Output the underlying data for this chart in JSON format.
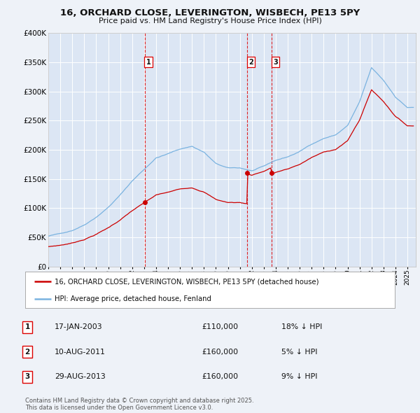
{
  "title": "16, ORCHARD CLOSE, LEVERINGTON, WISBECH, PE13 5PY",
  "subtitle": "Price paid vs. HM Land Registry's House Price Index (HPI)",
  "hpi_color": "#7ab3e0",
  "price_color": "#cc0000",
  "background_color": "#eef2f8",
  "plot_bg_color": "#dce6f4",
  "grid_color": "#ffffff",
  "ylim": [
    0,
    400000
  ],
  "yticks": [
    0,
    50000,
    100000,
    150000,
    200000,
    250000,
    300000,
    350000,
    400000
  ],
  "ytick_labels": [
    "£0",
    "£50K",
    "£100K",
    "£150K",
    "£200K",
    "£250K",
    "£300K",
    "£350K",
    "£400K"
  ],
  "sale_dates_num": [
    2003.046,
    2011.604,
    2013.66
  ],
  "sale_prices": [
    110000,
    160000,
    160000
  ],
  "sale_labels": [
    "1",
    "2",
    "3"
  ],
  "vline_color": "#dd0000",
  "footer_line1": "Contains HM Land Registry data © Crown copyright and database right 2025.",
  "footer_line2": "This data is licensed under the Open Government Licence v3.0.",
  "legend_entry1": "16, ORCHARD CLOSE, LEVERINGTON, WISBECH, PE13 5PY (detached house)",
  "legend_entry2": "HPI: Average price, detached house, Fenland",
  "table_data": [
    {
      "label": "1",
      "date": "17-JAN-2003",
      "price": "£110,000",
      "hpi": "18% ↓ HPI"
    },
    {
      "label": "2",
      "date": "10-AUG-2011",
      "price": "£160,000",
      "hpi": "5% ↓ HPI"
    },
    {
      "label": "3",
      "date": "29-AUG-2013",
      "price": "£160,000",
      "hpi": "9% ↓ HPI"
    }
  ],
  "hpi_anchor_years": [
    1995,
    1996,
    1997,
    1998,
    1999,
    2000,
    2001,
    2002,
    2003,
    2004,
    2005,
    2006,
    2007,
    2008,
    2009,
    2010,
    2011,
    2012,
    2013,
    2014,
    2015,
    2016,
    2017,
    2018,
    2019,
    2020,
    2021,
    2022,
    2023,
    2024,
    2025
  ],
  "hpi_anchor_vals": [
    52000,
    56000,
    62000,
    72000,
    86000,
    103000,
    124000,
    148000,
    168000,
    188000,
    195000,
    203000,
    208000,
    198000,
    178000,
    170000,
    170000,
    165000,
    172000,
    182000,
    188000,
    197000,
    210000,
    220000,
    226000,
    242000,
    282000,
    340000,
    318000,
    290000,
    272000
  ]
}
